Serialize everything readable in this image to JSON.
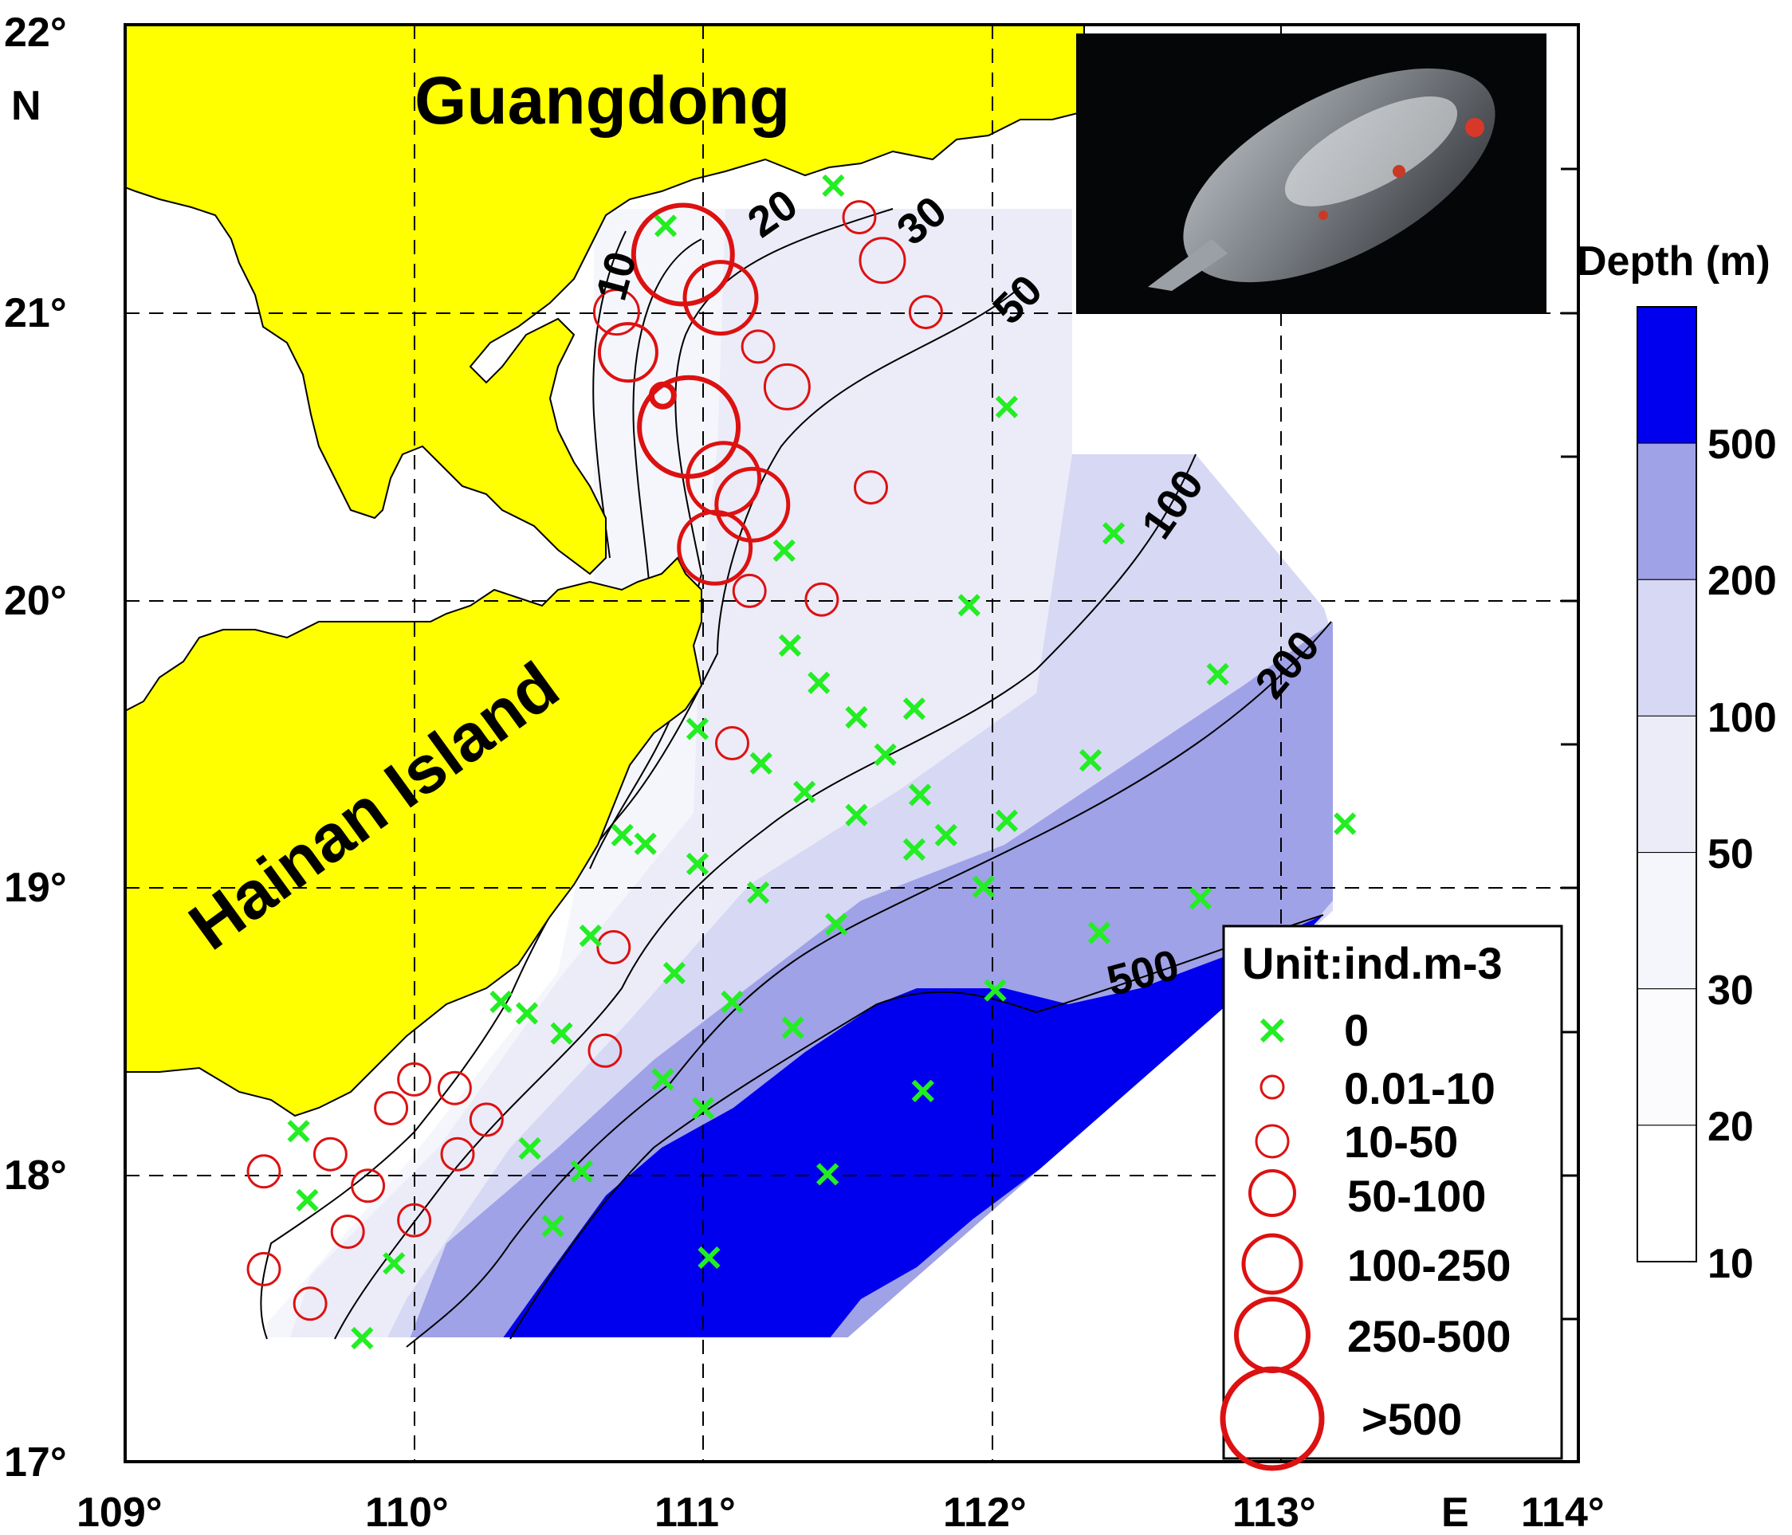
{
  "map": {
    "lon_ticks": [
      "109°",
      "110°",
      "111°",
      "112°",
      "113°",
      "114°"
    ],
    "lat_ticks": [
      "22°",
      "21°",
      "20°",
      "19°",
      "18°",
      "17°"
    ],
    "lon_hemisphere": "E",
    "lat_hemisphere": "N",
    "land_labels": {
      "guangdong": "Guangdong",
      "hainan": "Hainan Island"
    },
    "contour_labels": [
      "10",
      "20",
      "30",
      "50",
      "100",
      "200",
      "500"
    ],
    "colors": {
      "land": "#ffff00",
      "station_zero": "#22ee22",
      "station_positive": "#dd1111",
      "deep": "#0000ee"
    }
  },
  "legend": {
    "title": "Unit:ind.m-3",
    "entries": [
      "0",
      "0.01-10",
      "10-50",
      "50-100",
      "100-250",
      "250-500",
      ">500"
    ]
  },
  "colorbar": {
    "title": "Depth (m)",
    "levels": [
      "500",
      "200",
      "100",
      "50",
      "30",
      "20",
      "10"
    ],
    "colors": [
      "#0000ee",
      "#9fa2e6",
      "#d6d8f4",
      "#ebecf8",
      "#f5f6fb",
      "#fbfbfd",
      "#ffffff"
    ]
  },
  "stations_zero": [
    [
      111.45,
      21.44
    ],
    [
      110.87,
      21.3
    ],
    [
      112.05,
      20.67
    ],
    [
      112.42,
      20.23
    ],
    [
      111.28,
      20.17
    ],
    [
      111.92,
      19.98
    ],
    [
      111.3,
      19.84
    ],
    [
      112.78,
      19.74
    ],
    [
      111.4,
      19.71
    ],
    [
      111.53,
      19.59
    ],
    [
      111.73,
      19.62
    ],
    [
      110.98,
      19.55
    ],
    [
      111.63,
      19.46
    ],
    [
      112.34,
      19.44
    ],
    [
      111.2,
      19.43
    ],
    [
      111.35,
      19.33
    ],
    [
      111.75,
      19.32
    ],
    [
      111.53,
      19.25
    ],
    [
      112.05,
      19.23
    ],
    [
      113.22,
      19.22
    ],
    [
      111.84,
      19.18
    ],
    [
      110.72,
      19.18
    ],
    [
      110.8,
      19.15
    ],
    [
      111.73,
      19.13
    ],
    [
      110.98,
      19.08
    ],
    [
      111.97,
      19.0
    ],
    [
      112.72,
      18.96
    ],
    [
      111.19,
      18.98
    ],
    [
      111.46,
      18.87
    ],
    [
      112.37,
      18.84
    ],
    [
      110.61,
      18.83
    ],
    [
      110.9,
      18.7
    ],
    [
      112.01,
      18.64
    ],
    [
      110.3,
      18.6
    ],
    [
      111.1,
      18.6
    ],
    [
      110.39,
      18.56
    ],
    [
      111.31,
      18.51
    ],
    [
      110.51,
      18.49
    ],
    [
      110.86,
      18.33
    ],
    [
      111.76,
      18.29
    ],
    [
      111.0,
      18.23
    ],
    [
      110.4,
      18.09
    ],
    [
      110.58,
      18.01
    ],
    [
      111.43,
      18.0
    ],
    [
      109.6,
      18.15
    ],
    [
      109.63,
      17.91
    ],
    [
      110.48,
      17.82
    ],
    [
      109.93,
      17.69
    ],
    [
      111.02,
      17.71
    ],
    [
      109.82,
      17.43
    ]
  ],
  "stations_positive": [
    [
      110.93,
      21.2,
      6
    ],
    [
      111.06,
      21.05,
      5
    ],
    [
      110.86,
      20.71,
      7
    ],
    [
      110.95,
      20.6,
      6
    ],
    [
      110.74,
      20.86,
      4
    ],
    [
      110.7,
      21.0,
      3
    ],
    [
      111.07,
      20.42,
      5
    ],
    [
      111.17,
      20.33,
      5
    ],
    [
      111.04,
      20.18,
      5
    ],
    [
      111.54,
      21.33,
      2
    ],
    [
      111.62,
      21.18,
      3
    ],
    [
      111.77,
      21.0,
      2
    ],
    [
      111.19,
      20.88,
      2
    ],
    [
      111.29,
      20.74,
      3
    ],
    [
      111.58,
      20.39,
      2
    ],
    [
      111.16,
      20.03,
      2
    ],
    [
      111.41,
      20.0,
      2
    ],
    [
      111.1,
      19.5,
      2
    ],
    [
      110.69,
      18.79,
      2
    ],
    [
      110.66,
      18.43,
      2
    ],
    [
      110.0,
      18.33,
      2
    ],
    [
      110.14,
      18.3,
      2
    ],
    [
      109.92,
      18.23,
      2
    ],
    [
      110.25,
      18.19,
      2
    ],
    [
      110.15,
      18.07,
      2
    ],
    [
      109.71,
      18.07,
      2
    ],
    [
      109.48,
      18.01,
      2
    ],
    [
      109.84,
      17.96,
      2
    ],
    [
      110.0,
      17.84,
      2
    ],
    [
      109.77,
      17.8,
      2
    ],
    [
      109.48,
      17.67,
      2
    ],
    [
      109.64,
      17.55,
      2
    ]
  ]
}
